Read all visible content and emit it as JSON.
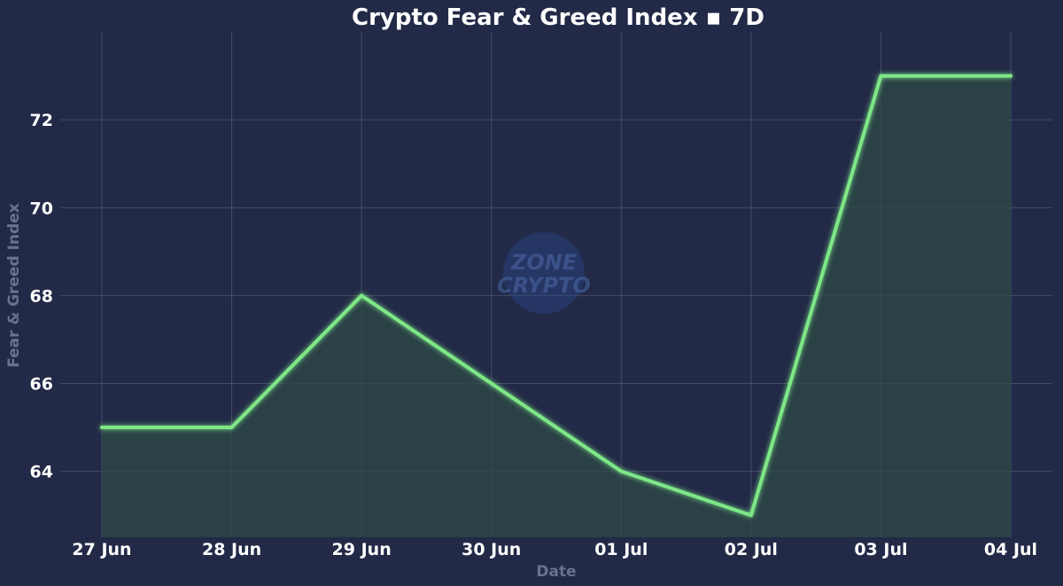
{
  "chart_data": {
    "type": "area",
    "title": "Crypto Fear & Greed Index ▪ 7D",
    "xlabel": "Date",
    "ylabel": "Fear & Greed Index",
    "categories": [
      "27 Jun",
      "28 Jun",
      "29 Jun",
      "30 Jun",
      "01 Jul",
      "02 Jul",
      "03 Jul",
      "04 Jul"
    ],
    "series": [
      {
        "values": [
          65,
          65,
          68,
          66,
          64,
          63,
          73,
          73
        ]
      }
    ],
    "yticks": [
      64,
      66,
      68,
      70,
      72
    ],
    "ylim": [
      62.5,
      74
    ],
    "grid": true,
    "line_color": "#7ee787",
    "fill_color": "#2d4a45",
    "background_color": "#222a47"
  },
  "watermark": {
    "line1": "ZONE",
    "line2": "CRYPTO"
  }
}
